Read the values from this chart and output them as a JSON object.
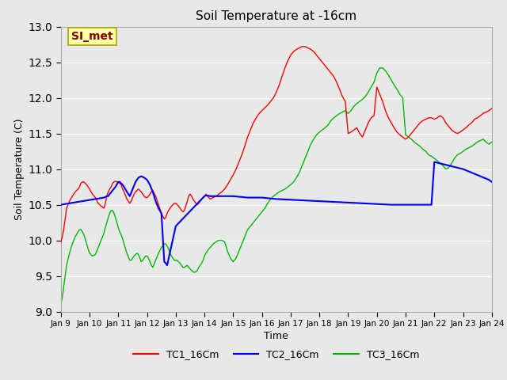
{
  "title": "Soil Temperature at -16cm",
  "xlabel": "Time",
  "ylabel": "Soil Temperature (C)",
  "ylim": [
    9.0,
    13.0
  ],
  "yticks": [
    9.0,
    9.5,
    10.0,
    10.5,
    11.0,
    11.5,
    12.0,
    12.5,
    13.0
  ],
  "xtick_labels": [
    "Jan 9",
    "Jan 10",
    "Jan 11",
    "Jan 12",
    "Jan 13",
    "Jan 14",
    "Jan 15",
    "Jan 16",
    "Jan 17",
    "Jan 18",
    "Jan 19",
    "Jan 20",
    "Jan 21",
    "Jan 22",
    "Jan 23",
    "Jan 24"
  ],
  "annotation_text": "SI_met",
  "annotation_color": "#8B0000",
  "annotation_bg": "#FFFFAA",
  "annotation_border": "#AAAA00",
  "bg_color": "#E8E8E8",
  "grid_color": "#FFFFFF",
  "line_colors": {
    "TC1": "#FF0000",
    "TC2": "#0000FF",
    "TC3": "#00BB00"
  },
  "legend_labels": [
    "TC1_16Cm",
    "TC2_16Cm",
    "TC3_16Cm"
  ],
  "TC1_x": [
    9.0,
    9.05,
    9.1,
    9.15,
    9.2,
    9.3,
    9.4,
    9.5,
    9.6,
    9.65,
    9.7,
    9.75,
    9.8,
    9.85,
    9.9,
    9.95,
    10.0,
    10.05,
    10.1,
    10.2,
    10.3,
    10.4,
    10.5,
    10.55,
    10.6,
    10.65,
    10.7,
    10.75,
    10.8,
    10.85,
    10.9,
    10.95,
    11.0,
    11.05,
    11.1,
    11.15,
    11.2,
    11.3,
    11.4,
    11.45,
    11.5,
    11.55,
    11.6,
    11.65,
    11.7,
    11.75,
    11.8,
    11.85,
    11.9,
    11.95,
    12.0,
    12.05,
    12.1,
    12.15,
    12.2,
    12.3,
    12.4,
    12.5,
    12.6,
    12.65,
    12.7,
    12.75,
    12.8,
    12.85,
    12.9,
    12.95,
    13.0,
    13.05,
    13.1,
    13.15,
    13.2,
    13.25,
    13.3,
    13.4,
    13.45,
    13.5,
    13.55,
    13.6,
    13.65,
    13.7,
    13.75,
    13.8,
    13.85,
    13.9,
    13.95,
    14.0,
    14.05,
    14.1,
    14.15,
    14.2,
    14.3,
    14.4,
    14.5,
    14.6,
    14.7,
    14.8,
    14.9,
    15.0,
    15.1,
    15.2,
    15.3,
    15.4,
    15.5,
    15.6,
    15.7,
    15.8,
    15.9,
    16.0,
    16.1,
    16.2,
    16.3,
    16.4,
    16.5,
    16.6,
    16.7,
    16.8,
    16.9,
    17.0,
    17.1,
    17.2,
    17.3,
    17.4,
    17.5,
    17.6,
    17.7,
    17.8,
    17.9,
    18.0,
    18.1,
    18.2,
    18.3,
    18.4,
    18.5,
    18.6,
    18.7,
    18.8,
    18.9,
    19.0,
    19.1,
    19.2,
    19.3,
    19.4,
    19.5,
    19.6,
    19.7,
    19.8,
    19.9,
    20.0,
    20.1,
    20.2,
    20.3,
    20.4,
    20.5,
    20.6,
    20.7,
    20.8,
    20.9,
    21.0,
    21.1,
    21.2,
    21.3,
    21.4,
    21.5,
    21.6,
    21.7,
    21.8,
    21.9,
    22.0,
    22.1,
    22.2,
    22.3,
    22.4,
    22.5,
    22.6,
    22.7,
    22.8,
    22.9,
    23.0,
    23.1,
    23.2,
    23.3,
    23.4,
    23.5,
    23.6,
    23.7,
    23.8,
    23.9,
    24.0
  ],
  "TC1_y": [
    9.97,
    10.05,
    10.15,
    10.3,
    10.45,
    10.55,
    10.62,
    10.68,
    10.72,
    10.75,
    10.8,
    10.82,
    10.82,
    10.8,
    10.78,
    10.75,
    10.72,
    10.68,
    10.65,
    10.6,
    10.52,
    10.48,
    10.45,
    10.52,
    10.62,
    10.68,
    10.72,
    10.75,
    10.8,
    10.82,
    10.83,
    10.82,
    10.82,
    10.8,
    10.78,
    10.72,
    10.68,
    10.58,
    10.52,
    10.55,
    10.6,
    10.65,
    10.68,
    10.7,
    10.72,
    10.7,
    10.68,
    10.65,
    10.62,
    10.6,
    10.6,
    10.62,
    10.65,
    10.68,
    10.7,
    10.62,
    10.5,
    10.38,
    10.3,
    10.32,
    10.38,
    10.42,
    10.45,
    10.48,
    10.5,
    10.52,
    10.52,
    10.5,
    10.48,
    10.45,
    10.42,
    10.4,
    10.42,
    10.55,
    10.62,
    10.65,
    10.62,
    10.58,
    10.55,
    10.52,
    10.5,
    10.52,
    10.55,
    10.58,
    10.6,
    10.62,
    10.65,
    10.62,
    10.6,
    10.58,
    10.6,
    10.62,
    10.65,
    10.68,
    10.72,
    10.78,
    10.85,
    10.92,
    11.0,
    11.1,
    11.2,
    11.32,
    11.45,
    11.55,
    11.65,
    11.72,
    11.78,
    11.82,
    11.86,
    11.9,
    11.95,
    12.0,
    12.08,
    12.18,
    12.3,
    12.42,
    12.52,
    12.6,
    12.65,
    12.68,
    12.7,
    12.72,
    12.72,
    12.7,
    12.68,
    12.65,
    12.6,
    12.55,
    12.5,
    12.45,
    12.4,
    12.35,
    12.3,
    12.22,
    12.12,
    12.02,
    11.95,
    11.5,
    11.52,
    11.55,
    11.58,
    11.5,
    11.45,
    11.55,
    11.65,
    11.72,
    11.75,
    12.15,
    12.05,
    11.95,
    11.82,
    11.72,
    11.65,
    11.58,
    11.52,
    11.48,
    11.45,
    11.42,
    11.45,
    11.5,
    11.55,
    11.6,
    11.65,
    11.68,
    11.7,
    11.72,
    11.72,
    11.7,
    11.72,
    11.75,
    11.72,
    11.65,
    11.6,
    11.55,
    11.52,
    11.5,
    11.52,
    11.55,
    11.58,
    11.62,
    11.65,
    11.7,
    11.72,
    11.75,
    11.78,
    11.8,
    11.82,
    11.85
  ],
  "TC2_x": [
    9.0,
    10.5,
    10.6,
    10.65,
    10.7,
    10.8,
    10.9,
    11.0,
    11.05,
    11.1,
    11.15,
    11.2,
    11.3,
    11.35,
    11.4,
    11.5,
    11.6,
    11.7,
    11.8,
    11.9,
    12.0,
    12.1,
    12.2,
    12.3,
    12.4,
    12.5,
    12.6,
    12.65,
    12.7,
    13.0,
    14.0,
    14.05,
    14.1,
    14.2,
    14.3,
    14.4,
    14.5,
    15.0,
    15.5,
    16.0,
    16.5,
    17.0,
    17.5,
    18.0,
    18.5,
    19.0,
    19.5,
    20.0,
    20.5,
    21.0,
    21.05,
    21.1,
    21.2,
    21.3,
    21.35,
    21.5,
    21.6,
    21.7,
    21.8,
    21.9,
    22.0,
    22.2,
    22.5,
    22.8,
    23.0,
    23.3,
    23.6,
    23.9,
    24.0
  ],
  "TC2_y": [
    10.5,
    10.6,
    10.62,
    10.62,
    10.65,
    10.7,
    10.75,
    10.82,
    10.82,
    10.8,
    10.78,
    10.75,
    10.68,
    10.65,
    10.62,
    10.72,
    10.82,
    10.88,
    10.9,
    10.88,
    10.85,
    10.78,
    10.68,
    10.55,
    10.45,
    10.38,
    9.7,
    9.68,
    9.65,
    10.2,
    10.62,
    10.63,
    10.63,
    10.62,
    10.62,
    10.62,
    10.62,
    10.62,
    10.6,
    10.6,
    10.58,
    10.57,
    10.56,
    10.55,
    10.54,
    10.53,
    10.52,
    10.51,
    10.5,
    10.5,
    10.5,
    10.5,
    10.5,
    10.5,
    10.5,
    10.5,
    10.5,
    10.5,
    10.5,
    10.5,
    11.1,
    11.08,
    11.05,
    11.02,
    11.0,
    10.95,
    10.9,
    10.85,
    10.82
  ],
  "TC3_x": [
    9.0,
    9.05,
    9.1,
    9.15,
    9.2,
    9.3,
    9.4,
    9.5,
    9.6,
    9.65,
    9.7,
    9.75,
    9.8,
    9.85,
    9.9,
    9.95,
    10.0,
    10.05,
    10.1,
    10.2,
    10.3,
    10.4,
    10.5,
    10.55,
    10.6,
    10.65,
    10.7,
    10.75,
    10.8,
    10.85,
    10.9,
    10.95,
    11.0,
    11.05,
    11.1,
    11.15,
    11.2,
    11.3,
    11.4,
    11.45,
    11.5,
    11.55,
    11.6,
    11.65,
    11.7,
    11.75,
    11.8,
    11.85,
    11.9,
    11.95,
    12.0,
    12.05,
    12.1,
    12.15,
    12.2,
    12.3,
    12.4,
    12.5,
    12.6,
    12.65,
    12.7,
    12.75,
    12.8,
    12.85,
    12.9,
    12.95,
    13.0,
    13.05,
    13.1,
    13.15,
    13.2,
    13.25,
    13.3,
    13.4,
    13.45,
    13.5,
    13.55,
    13.6,
    13.65,
    13.7,
    13.75,
    13.8,
    13.85,
    13.9,
    13.95,
    14.0,
    14.05,
    14.1,
    14.15,
    14.2,
    14.3,
    14.4,
    14.5,
    14.6,
    14.7,
    14.8,
    14.9,
    15.0,
    15.1,
    15.2,
    15.3,
    15.4,
    15.5,
    15.6,
    15.7,
    15.8,
    15.9,
    16.0,
    16.1,
    16.2,
    16.3,
    16.4,
    16.5,
    16.6,
    16.7,
    16.8,
    16.9,
    17.0,
    17.1,
    17.2,
    17.3,
    17.4,
    17.5,
    17.6,
    17.7,
    17.8,
    17.9,
    18.0,
    18.1,
    18.2,
    18.3,
    18.4,
    18.5,
    18.6,
    18.7,
    18.8,
    18.9,
    19.0,
    19.1,
    19.2,
    19.3,
    19.4,
    19.5,
    19.6,
    19.7,
    19.8,
    19.9,
    20.0,
    20.1,
    20.2,
    20.3,
    20.4,
    20.5,
    20.6,
    20.7,
    20.8,
    20.9,
    21.0,
    21.1,
    21.2,
    21.3,
    21.4,
    21.5,
    21.6,
    21.7,
    21.8,
    21.9,
    22.0,
    22.1,
    22.2,
    22.3,
    22.4,
    22.5,
    22.6,
    22.7,
    22.8,
    22.9,
    23.0,
    23.1,
    23.2,
    23.3,
    23.4,
    23.5,
    23.6,
    23.7,
    23.8,
    23.9,
    24.0
  ],
  "TC3_y": [
    9.1,
    9.2,
    9.35,
    9.5,
    9.65,
    9.82,
    9.95,
    10.05,
    10.12,
    10.15,
    10.15,
    10.12,
    10.08,
    10.02,
    9.95,
    9.88,
    9.82,
    9.8,
    9.78,
    9.8,
    9.9,
    10.0,
    10.1,
    10.18,
    10.25,
    10.32,
    10.38,
    10.42,
    10.42,
    10.38,
    10.32,
    10.25,
    10.18,
    10.12,
    10.08,
    10.02,
    9.95,
    9.82,
    9.72,
    9.72,
    9.75,
    9.78,
    9.8,
    9.82,
    9.8,
    9.75,
    9.7,
    9.72,
    9.75,
    9.78,
    9.78,
    9.75,
    9.7,
    9.65,
    9.62,
    9.72,
    9.82,
    9.9,
    9.95,
    9.95,
    9.92,
    9.88,
    9.82,
    9.78,
    9.75,
    9.72,
    9.72,
    9.72,
    9.7,
    9.68,
    9.65,
    9.62,
    9.62,
    9.65,
    9.62,
    9.6,
    9.58,
    9.56,
    9.55,
    9.56,
    9.58,
    9.62,
    9.65,
    9.68,
    9.72,
    9.78,
    9.82,
    9.85,
    9.88,
    9.9,
    9.95,
    9.98,
    10.0,
    10.0,
    9.98,
    9.85,
    9.75,
    9.7,
    9.75,
    9.85,
    9.95,
    10.05,
    10.15,
    10.2,
    10.25,
    10.3,
    10.35,
    10.4,
    10.45,
    10.52,
    10.58,
    10.62,
    10.65,
    10.68,
    10.7,
    10.72,
    10.75,
    10.78,
    10.82,
    10.88,
    10.95,
    11.05,
    11.15,
    11.25,
    11.35,
    11.42,
    11.48,
    11.52,
    11.55,
    11.58,
    11.62,
    11.68,
    11.72,
    11.75,
    11.78,
    11.8,
    11.82,
    11.78,
    11.82,
    11.88,
    11.92,
    11.95,
    11.98,
    12.02,
    12.08,
    12.15,
    12.22,
    12.35,
    12.42,
    12.42,
    12.38,
    12.32,
    12.25,
    12.18,
    12.12,
    12.05,
    12.0,
    11.48,
    11.45,
    11.42,
    11.38,
    11.35,
    11.32,
    11.28,
    11.25,
    11.2,
    11.18,
    11.15,
    11.12,
    11.08,
    11.05,
    11.0,
    11.02,
    11.08,
    11.15,
    11.2,
    11.22,
    11.25,
    11.28,
    11.3,
    11.32,
    11.35,
    11.38,
    11.4,
    11.42,
    11.38,
    11.35,
    11.38
  ]
}
